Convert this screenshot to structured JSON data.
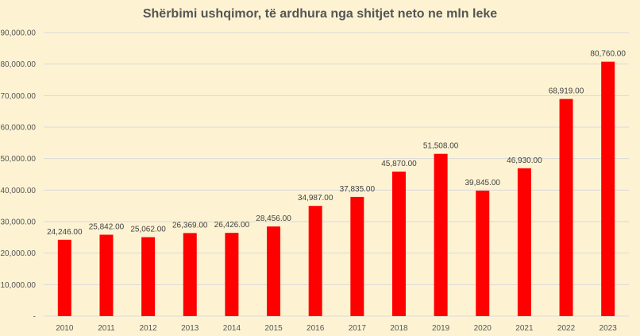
{
  "chart_data": {
    "type": "bar",
    "title": "Shërbimi ushqimor, të ardhura nga shitjet neto ne mln leke",
    "xlabel": "",
    "ylabel": "",
    "categories": [
      "2010",
      "2011",
      "2012",
      "2013",
      "2014",
      "2015",
      "2016",
      "2017",
      "2018",
      "2019",
      "2020",
      "2021",
      "2022",
      "2023"
    ],
    "values": [
      24246,
      25842,
      25062,
      26369,
      26426,
      28456,
      34987,
      37835,
      45870,
      51508,
      39845,
      46930,
      68919,
      80760
    ],
    "value_labels": [
      "24,246.00",
      "25,842.00",
      "25,062.00",
      "26,369.00",
      "26,426.00",
      "28,456.00",
      "34,987.00",
      "37,835.00",
      "45,870.00",
      "51,508.00",
      "39,845.00",
      "46,930.00",
      "68,919.00",
      "80,760.00"
    ],
    "ylim": [
      0,
      90000
    ],
    "y_ticks": [
      0,
      10000,
      20000,
      30000,
      40000,
      50000,
      60000,
      70000,
      80000,
      90000
    ],
    "y_tick_labels": [
      "-",
      "10,000.00",
      "20,000.00",
      "30,000.00",
      "40,000.00",
      "50,000.00",
      "60,000.00",
      "70,000.00",
      "80,000.00",
      "90,000.00"
    ],
    "grid": true,
    "legend": "none",
    "bar_color": "#ff0000",
    "background_color": "#fdf3d3",
    "grid_color": "#d9d9d9"
  }
}
